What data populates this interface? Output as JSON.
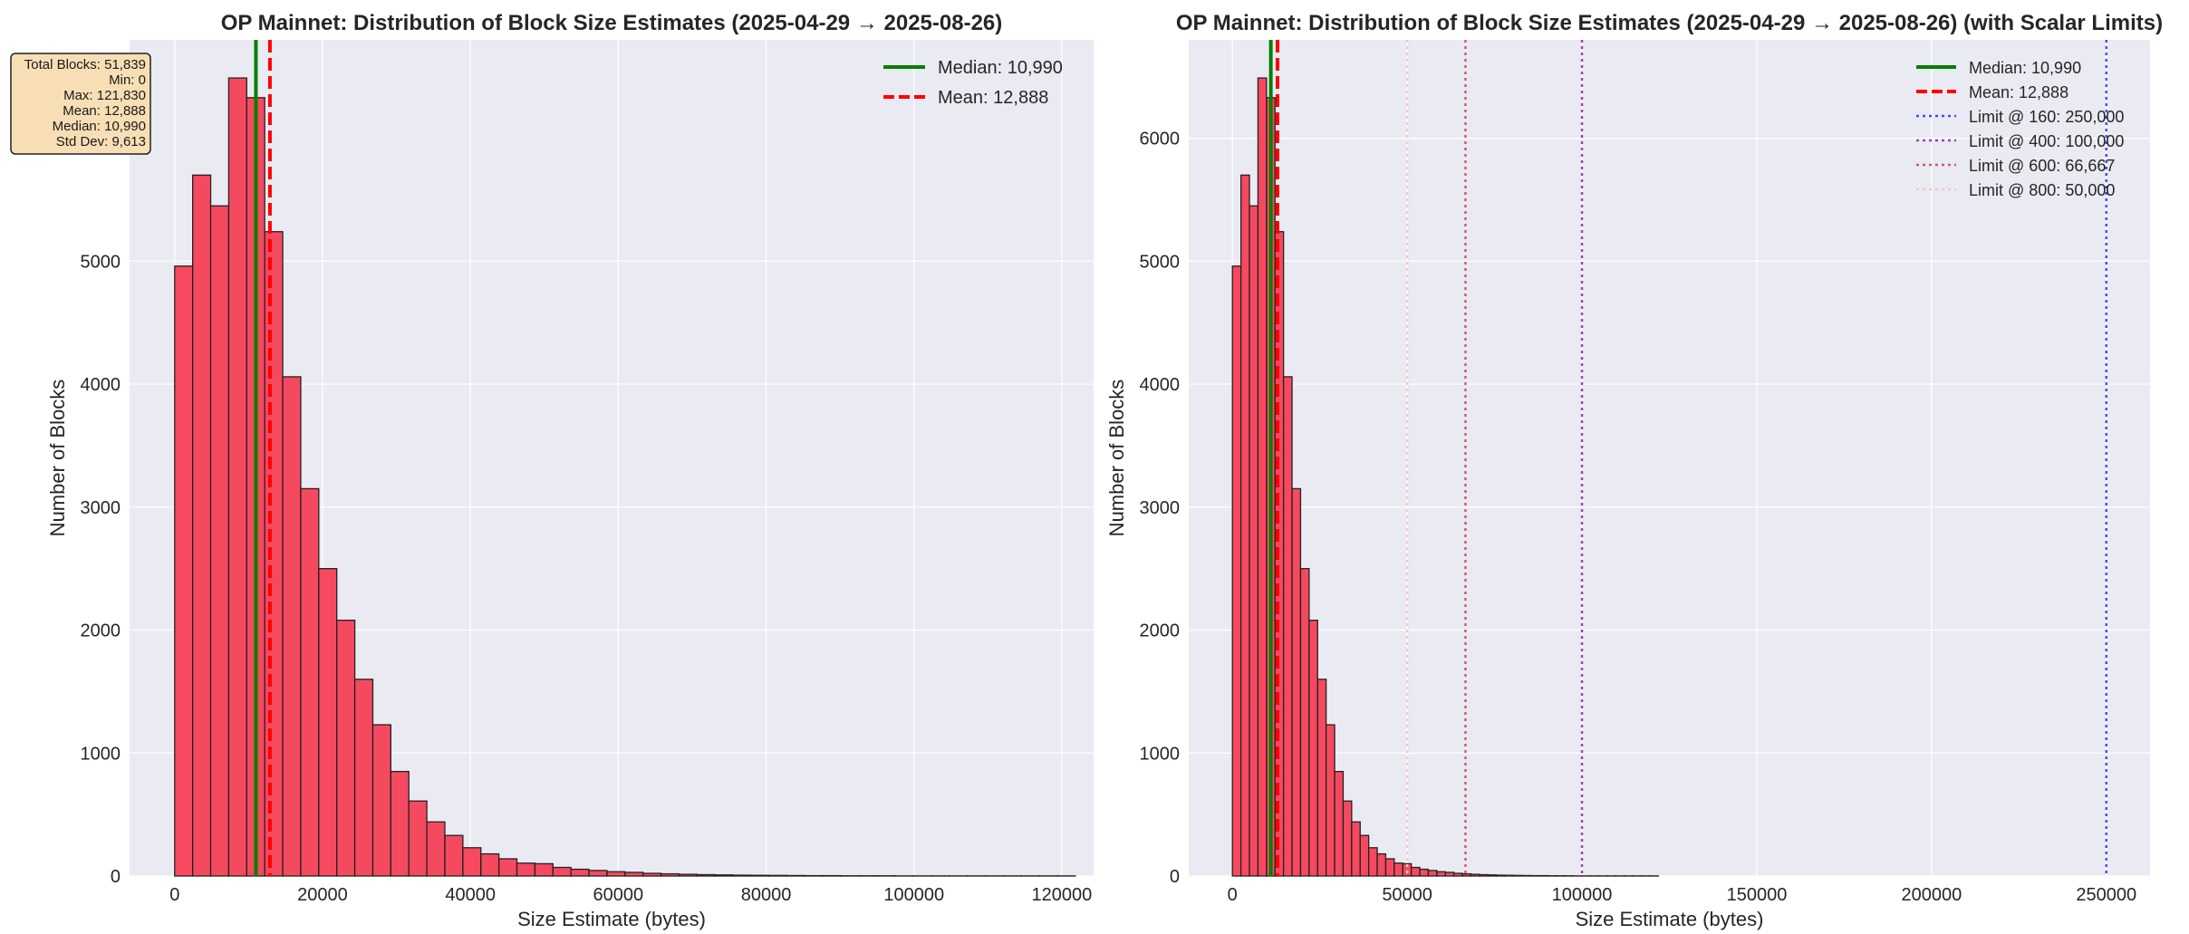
{
  "chart_data": [
    {
      "type": "bar",
      "title": "OP Mainnet: Distribution of Block Size Estimates (2025-04-29 → 2025-08-26)",
      "xlabel": "Size Estimate (bytes)",
      "ylabel": "Number of Blocks",
      "xlim": [
        -6100,
        124300
      ],
      "ylim": [
        0,
        6800
      ],
      "xticks": [
        0,
        20000,
        40000,
        60000,
        80000,
        100000,
        120000
      ],
      "yticks": [
        0,
        1000,
        2000,
        3000,
        4000,
        5000
      ],
      "grid": true,
      "bin_start": 0,
      "bin_width": 2436.6,
      "values": [
        4960,
        5700,
        5450,
        6490,
        6330,
        5240,
        4060,
        3150,
        2500,
        2080,
        1600,
        1230,
        850,
        610,
        440,
        330,
        230,
        180,
        140,
        105,
        100,
        70,
        55,
        45,
        35,
        30,
        22,
        18,
        14,
        11,
        9,
        7,
        6,
        5,
        4,
        3,
        3,
        2,
        2,
        2,
        1,
        1,
        1,
        1,
        1,
        1,
        1,
        1,
        1,
        1
      ],
      "bar_color": "#f5495f",
      "lines": [
        {
          "label": "Median: 10,990",
          "x": 10990,
          "color": "#008000",
          "style": "solid"
        },
        {
          "label": "Mean: 12,888",
          "x": 12888,
          "color": "#ff0000",
          "style": "dashed"
        }
      ],
      "legend_position": "top-right",
      "stats_box": {
        "position": "top-left",
        "lines": [
          "Total Blocks: 51,839",
          "Min: 0",
          "Max: 121,830",
          "Mean: 12,888",
          "Median: 10,990",
          "Std Dev: 9,613"
        ]
      }
    },
    {
      "type": "bar",
      "title": "OP Mainnet: Distribution of Block Size Estimates (2025-04-29 → 2025-08-26) (with Scalar Limits)",
      "xlabel": "Size Estimate (bytes)",
      "ylabel": "Number of Blocks",
      "xlim": [
        -12500,
        262500
      ],
      "ylim": [
        0,
        6800
      ],
      "xticks": [
        0,
        50000,
        100000,
        150000,
        200000,
        250000
      ],
      "yticks": [
        0,
        1000,
        2000,
        3000,
        4000,
        5000,
        6000
      ],
      "grid": true,
      "bin_start": 0,
      "bin_width": 2436.6,
      "values": [
        4960,
        5700,
        5450,
        6490,
        6330,
        5240,
        4060,
        3150,
        2500,
        2080,
        1600,
        1230,
        850,
        610,
        440,
        330,
        230,
        180,
        140,
        105,
        100,
        70,
        55,
        45,
        35,
        30,
        22,
        18,
        14,
        11,
        9,
        7,
        6,
        5,
        4,
        3,
        3,
        2,
        2,
        2,
        1,
        1,
        1,
        1,
        1,
        1,
        1,
        1,
        1,
        1
      ],
      "bar_color": "#f5495f",
      "lines": [
        {
          "label": "Median: 10,990",
          "x": 10990,
          "color": "#008000",
          "style": "solid"
        },
        {
          "label": "Mean: 12,888",
          "x": 12888,
          "color": "#ff0000",
          "style": "dashed"
        },
        {
          "label": "Limit @ 160: 250,000",
          "x": 250000,
          "color": "#4a4ae0",
          "style": "dotted"
        },
        {
          "label": "Limit @ 400: 100,000",
          "x": 100000,
          "color": "#a040b0",
          "style": "dotted"
        },
        {
          "label": "Limit @ 600: 66,667",
          "x": 66667,
          "color": "#d05868",
          "style": "dotted"
        },
        {
          "label": "Limit @ 800: 50,000",
          "x": 50000,
          "color": "#f5c8c8",
          "style": "dotted"
        }
      ],
      "legend_position": "top-right"
    }
  ]
}
